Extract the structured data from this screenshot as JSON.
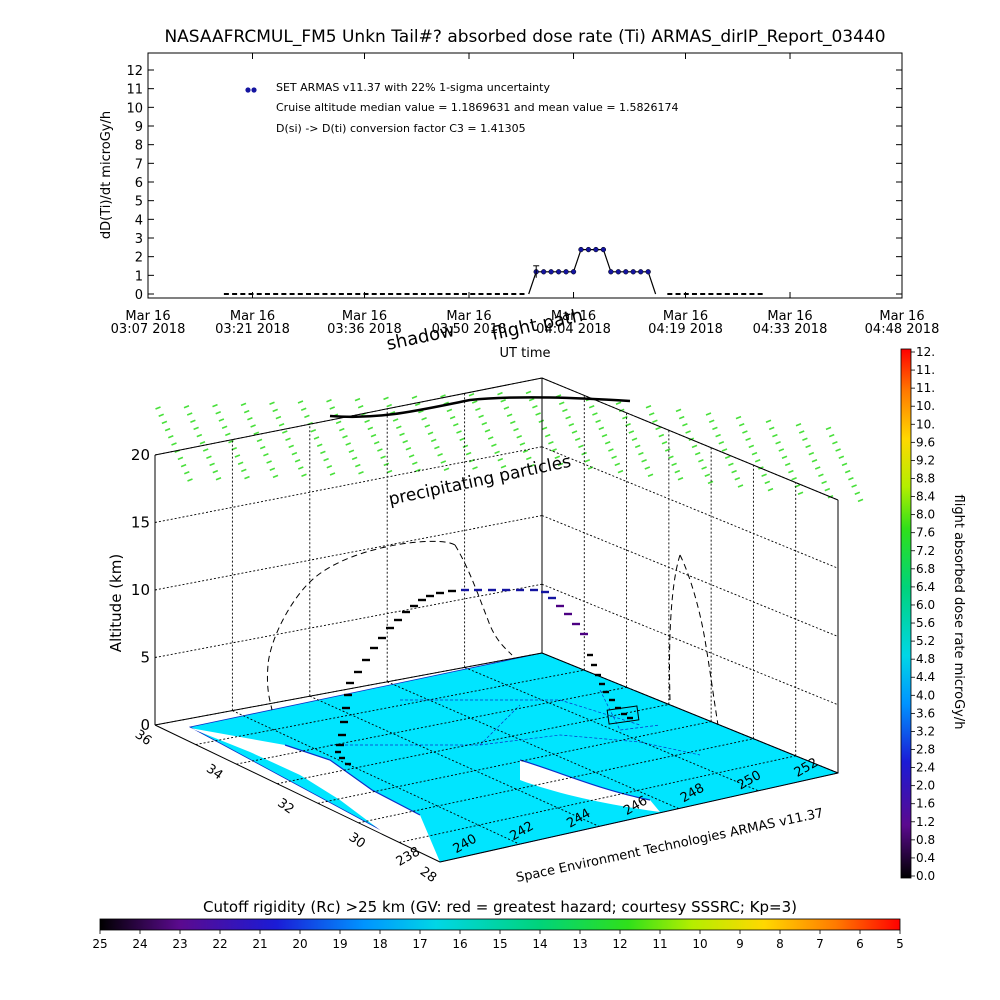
{
  "colors": {
    "series_marker": "#1414a0",
    "dose_dash": "#49e03b",
    "map_land": "#00e5ff",
    "map_lines": "#0b2fc8",
    "flight_track": "#000000"
  },
  "chart_data": [
    {
      "type": "scatter",
      "title": "NASAAFRCMUL_FM5 Unkn Tail#? absorbed dose rate (Ti) ARMAS_dirIP_Report_03440",
      "ylabel": "dD(Ti)/dt microGy/h",
      "xlabel": "UT time",
      "ylim": [
        0,
        12
      ],
      "y_ticks": [
        "0",
        "1",
        "2",
        "3",
        "4",
        "5",
        "6",
        "7",
        "8",
        "9",
        "10",
        "11",
        "12"
      ],
      "x_ticks": [
        {
          "l1": "Mar 16",
          "l2": "03:07 2018",
          "t": 0
        },
        {
          "l1": "Mar 16",
          "l2": "03:21 2018",
          "t": 14
        },
        {
          "l1": "Mar 16",
          "l2": "03:36 2018",
          "t": 29
        },
        {
          "l1": "Mar 16",
          "l2": "03:50 2018",
          "t": 43
        },
        {
          "l1": "Mar 16",
          "l2": "04:04 2018",
          "t": 57
        },
        {
          "l1": "Mar 16",
          "l2": "04:19 2018",
          "t": 72
        },
        {
          "l1": "Mar 16",
          "l2": "04:33 2018",
          "t": 86
        },
        {
          "l1": "Mar 16",
          "l2": "04:48 2018",
          "t": 101
        }
      ],
      "xlim_minutes": [
        0,
        101
      ],
      "legend": [
        "SET ARMAS v11.37 with 22% 1-sigma uncertainty",
        "Cruise altitude median value = 1.1869631 and mean value = 1.5826174",
        "D(si) -> D(ti) conversion factor C3 = 1.41305"
      ],
      "series": [
        {
          "name": "SET ARMAS v11.37 with 22% 1-sigma uncertainty",
          "x_minutes": [
            12,
            42,
            51,
            52,
            53,
            54,
            55,
            56,
            57,
            58,
            59,
            60,
            61,
            62,
            63,
            64,
            65,
            66,
            67,
            68,
            69,
            71,
            72,
            82
          ],
          "y": [
            0,
            0,
            0,
            1.19,
            1.19,
            1.19,
            1.19,
            1.19,
            1.19,
            2.38,
            2.38,
            2.38,
            2.38,
            1.19,
            1.19,
            1.19,
            1.19,
            1.19,
            1.19,
            0,
            0,
            0,
            0,
            0
          ]
        }
      ]
    },
    {
      "type": "3d-trajectory",
      "zlabel": "Altitude (km)",
      "z_ticks": [
        "0",
        "5",
        "10",
        "15",
        "20"
      ],
      "lat_ticks": [
        "28",
        "30",
        "32",
        "34",
        "36"
      ],
      "lon_ticks": [
        "238",
        "240",
        "242",
        "244",
        "246",
        "248",
        "250",
        "252"
      ],
      "annotations": [
        "precipitating particles",
        "flight path",
        "shadow"
      ],
      "credit": "Space Environment Technologies ARMAS v11.37"
    },
    {
      "type": "colorbar",
      "label": "flight absorbed dose rate microGy/h",
      "ticks": [
        "0.0",
        "0.4",
        "0.8",
        "1.2",
        "1.6",
        "2.0",
        "2.4",
        "2.8",
        "3.2",
        "3.6",
        "4.0",
        "4.4",
        "4.8",
        "5.2",
        "5.6",
        "6.0",
        "6.4",
        "6.8",
        "7.2",
        "7.6",
        "8.0",
        "8.4",
        "8.8",
        "9.2",
        "9.6",
        "10.",
        "10.",
        "11.",
        "11.",
        "12."
      ]
    },
    {
      "type": "colorbar",
      "label": "Cutoff rigidity (Rc) >25 km (GV: red = greatest hazard; courtesy SSSRC; Kp=3)",
      "ticks": [
        "25",
        "24",
        "23",
        "22",
        "21",
        "20",
        "19",
        "18",
        "17",
        "16",
        "15",
        "14",
        "13",
        "12",
        "11",
        "10",
        "9",
        "8",
        "7",
        "6",
        "5"
      ]
    }
  ]
}
